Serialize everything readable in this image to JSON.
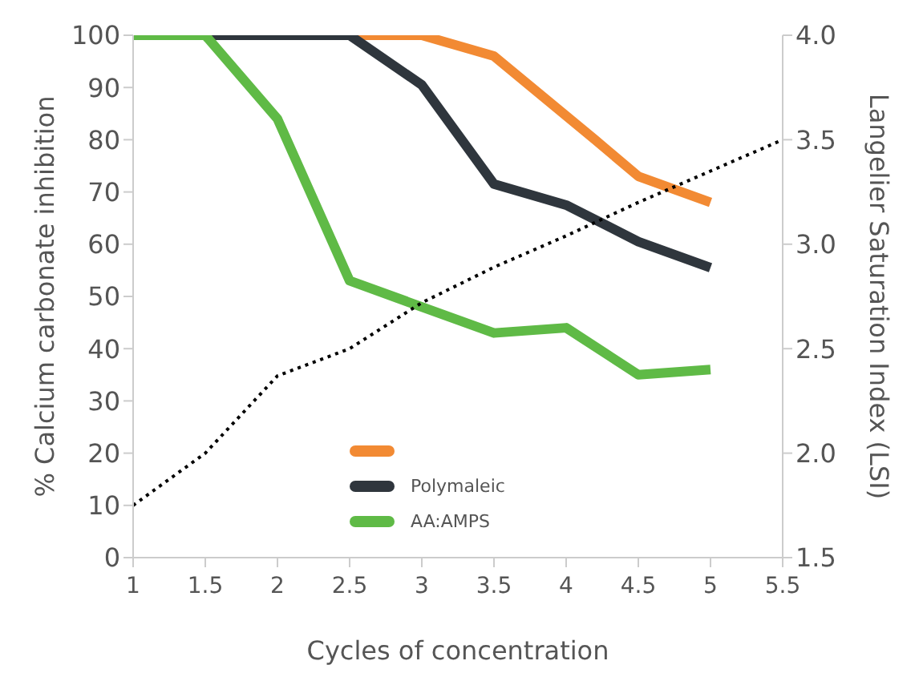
{
  "chart_data": {
    "type": "line",
    "xlabel": "Cycles of concentration",
    "ylabel": "% Calcium carbonate inhibition",
    "y2label": "Langelier Saturation Index (LSI)",
    "xlim": [
      1,
      5.5
    ],
    "xticks": [
      1,
      1.5,
      2,
      2.5,
      3,
      3.5,
      4,
      4.5,
      5,
      5.5
    ],
    "ylim": [
      0,
      100
    ],
    "yticks": [
      0,
      10,
      20,
      30,
      40,
      50,
      60,
      70,
      80,
      90,
      100
    ],
    "y2lim": [
      1.5,
      4
    ],
    "y2ticks": [
      {
        "value": 1.5,
        "label": "1.5"
      },
      {
        "value": 2,
        "label": "2.0"
      },
      {
        "value": 2.5,
        "label": "2.5"
      },
      {
        "value": 3,
        "label": "3.0"
      },
      {
        "value": 3.5,
        "label": "3.5"
      },
      {
        "value": 4,
        "label": "4.0"
      }
    ],
    "legend": "bottom",
    "marker": "none",
    "series": [
      {
        "color": "#f28a33",
        "x": [
          1,
          3,
          3.5,
          4.2,
          4.5,
          5
        ],
        "values": [
          100,
          100,
          96,
          80,
          73,
          68
        ]
      },
      {
        "name": "Polymaleic",
        "color": "#2f363d",
        "x": [
          1,
          2.5,
          3,
          3.5,
          4,
          4.5,
          5
        ],
        "values": [
          100,
          100,
          90.5,
          71.5,
          67.5,
          60.5,
          55.5
        ]
      },
      {
        "name": "AA:AMPS",
        "color": "#5fba46",
        "x": [
          1,
          1.5,
          2,
          2.5,
          3,
          3.5,
          4,
          4.5,
          5
        ],
        "values": [
          100,
          100,
          84,
          53,
          48,
          43,
          44,
          35,
          36
        ]
      },
      {
        "axis": "y2",
        "color": "#000000",
        "line_style": "dotted",
        "x": [
          1,
          1.5,
          2,
          2.5,
          3,
          3.5,
          4,
          4.5,
          5,
          5.5
        ],
        "values": [
          1.75,
          2.0,
          2.37,
          2.5,
          2.72,
          2.89,
          3.04,
          3.2,
          3.35,
          3.5
        ]
      }
    ]
  }
}
